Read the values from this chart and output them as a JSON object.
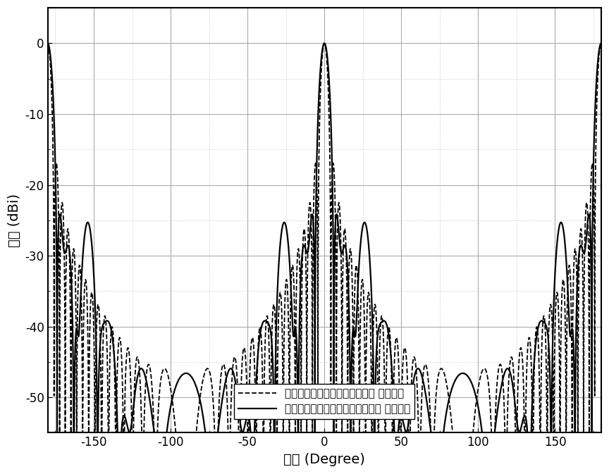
{
  "title": "",
  "xlabel": "角度 (Degree)",
  "ylabel": "增益 (dBi)",
  "xlim": [
    -180,
    180
  ],
  "ylim": [
    -55,
    5
  ],
  "xticks": [
    -150,
    -100,
    -50,
    0,
    50,
    100,
    150
  ],
  "yticks": [
    0,
    -10,
    -20,
    -30,
    -40,
    -50
  ],
  "legend1": "不等幅等间距串馈微带天线阵列 仿真结果",
  "legend2": "不等幅不等间距串馈微带天线阵列 仿真结果",
  "grid_major_color": "#aaaaaa",
  "grid_minor_color": "#cccccc",
  "line_color": "#000000",
  "background_color": "#ffffff",
  "font_size_label": 14,
  "font_size_tick": 12,
  "font_size_legend": 11
}
